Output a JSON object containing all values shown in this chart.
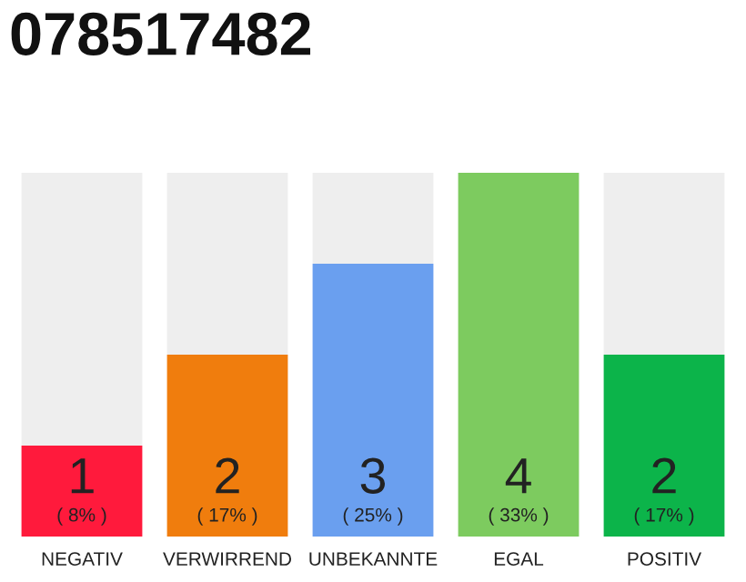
{
  "chart_data": {
    "type": "bar",
    "title": "078517482",
    "categories": [
      "NEGATIV",
      "VERWIRREND",
      "UNBEKANNTE",
      "EGAL",
      "POSITIV"
    ],
    "stacked": true,
    "grid": false,
    "legend": false,
    "annotations": [
      "( 8% )",
      "( 17% )",
      "( 25% )",
      "( 33% )",
      "( 17% )"
    ],
    "series": [
      {
        "colors": [
          "#ff1a3c",
          "#f07d0d",
          "#6a9fef",
          "#7dcb5f",
          "#0cb44a"
        ],
        "values": [
          1,
          2,
          3,
          4,
          2
        ],
        "value_labels": [
          "1",
          "2",
          "3",
          "4",
          "2"
        ]
      },
      {
        "color": "#eeeeee",
        "values": [
          3,
          2,
          1,
          0,
          2
        ]
      }
    ]
  }
}
